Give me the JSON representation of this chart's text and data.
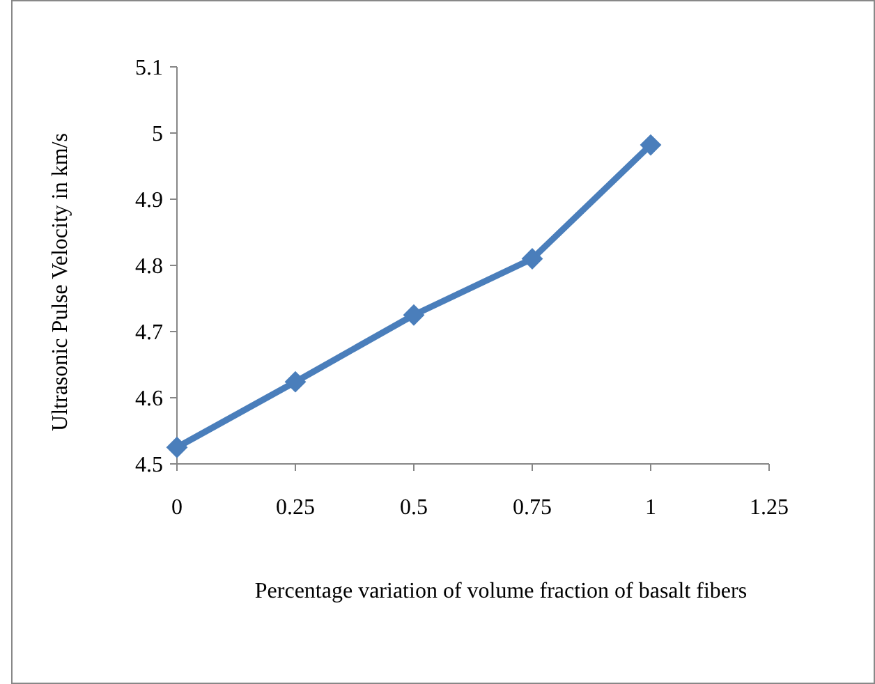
{
  "chart_data": {
    "type": "line",
    "xlabel": "Percentage variation of volume fraction of basalt fibers",
    "ylabel": "Ultrasonic Pulse Velocity in km/s",
    "x": [
      0,
      0.25,
      0.5,
      0.75,
      1
    ],
    "series": [
      {
        "color": "#4a7ebb",
        "values": [
          4.525,
          4.624,
          4.725,
          4.81,
          4.982
        ]
      }
    ],
    "xlim": [
      0,
      1.25
    ],
    "xticks": [
      0,
      0.25,
      0.5,
      0.75,
      1,
      1.25
    ],
    "ylim": [
      4.5,
      5.1
    ],
    "yticks": [
      4.5,
      4.6,
      4.7,
      4.8,
      4.9,
      5,
      5.1
    ],
    "grid": false,
    "marker": "diamond",
    "line_style": "solid"
  }
}
